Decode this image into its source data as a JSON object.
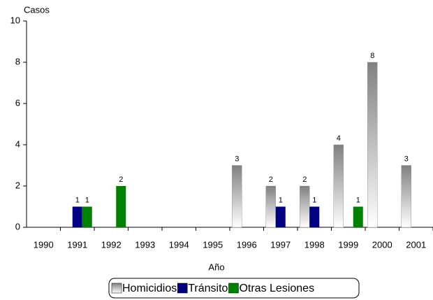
{
  "chart_data": {
    "type": "bar",
    "y_label": "Casos",
    "x_label": "Año",
    "categories": [
      "1990",
      "1991",
      "1992",
      "1993",
      "1994",
      "1995",
      "1996",
      "1997",
      "1998",
      "1999",
      "2000",
      "2001"
    ],
    "series": [
      {
        "name": "Homicidios",
        "color": "#808080",
        "values": [
          null,
          null,
          null,
          null,
          null,
          null,
          3,
          2,
          2,
          4,
          8,
          3
        ]
      },
      {
        "name": "Tránsito",
        "color": "#000080",
        "values": [
          null,
          1,
          null,
          null,
          null,
          null,
          null,
          1,
          1,
          null,
          null,
          null
        ]
      },
      {
        "name": "Otras Lesiones",
        "color": "#008000",
        "values": [
          null,
          1,
          2,
          null,
          null,
          null,
          null,
          null,
          null,
          1,
          null,
          null
        ]
      }
    ],
    "ylim": [
      0,
      10
    ],
    "yticks": [
      0,
      2,
      4,
      6,
      8,
      10
    ],
    "legend": "bottom"
  }
}
